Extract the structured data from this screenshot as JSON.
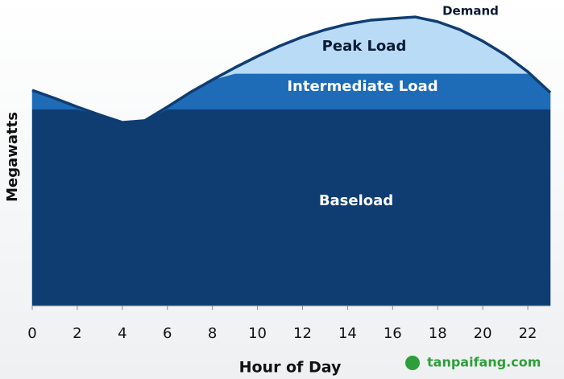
{
  "chart_data": {
    "type": "stacked-area",
    "x_label": "Hour of Day",
    "y_label": "Megawatts",
    "x": [
      0,
      1,
      2,
      3,
      4,
      5,
      6,
      7,
      8,
      9,
      10,
      11,
      12,
      13,
      14,
      15,
      16,
      17,
      18,
      19,
      20,
      21,
      22,
      23
    ],
    "xlim": [
      0,
      23
    ],
    "xticks": [
      0,
      2,
      4,
      6,
      8,
      10,
      12,
      14,
      16,
      18,
      20,
      22
    ],
    "ylim": [
      0,
      100
    ],
    "series": [
      {
        "name": "Baseload",
        "color": "#0f3d72",
        "values": [
          66,
          66,
          66,
          64.1,
          61.6,
          62.2,
          66,
          66,
          66,
          66,
          66,
          66,
          66,
          66,
          66,
          66,
          66,
          66,
          66,
          66,
          66,
          66,
          66,
          66
        ]
      },
      {
        "name": "Intermediate Load",
        "color": "#1e6cb8",
        "values": [
          6.4,
          3.7,
          0.8,
          0,
          0,
          0,
          0.8,
          5.6,
          9.9,
          12,
          12,
          12,
          12,
          12,
          12,
          12,
          12,
          12,
          12,
          12,
          12,
          12,
          12,
          5.6
        ]
      },
      {
        "name": "Peak Load",
        "color": "#b9dbf6",
        "values": [
          0,
          0,
          0,
          0,
          0,
          0,
          0,
          0,
          0,
          2,
          5.8,
          9.3,
          12.3,
          14.7,
          16.6,
          17.9,
          18.5,
          19,
          17.4,
          14.7,
          10.9,
          6.3,
          0.6,
          0
        ]
      },
      {
        "name": "Demand",
        "color": "#0f3d72",
        "type": "line",
        "values": [
          72.4,
          69.7,
          66.8,
          64.1,
          61.6,
          62.2,
          66.8,
          71.6,
          75.9,
          80,
          83.8,
          87.3,
          90.3,
          92.7,
          94.6,
          95.9,
          96.5,
          97,
          95.4,
          92.7,
          88.9,
          84.3,
          78.6,
          71.6
        ]
      }
    ],
    "watermark": "tanpaifang.com"
  }
}
